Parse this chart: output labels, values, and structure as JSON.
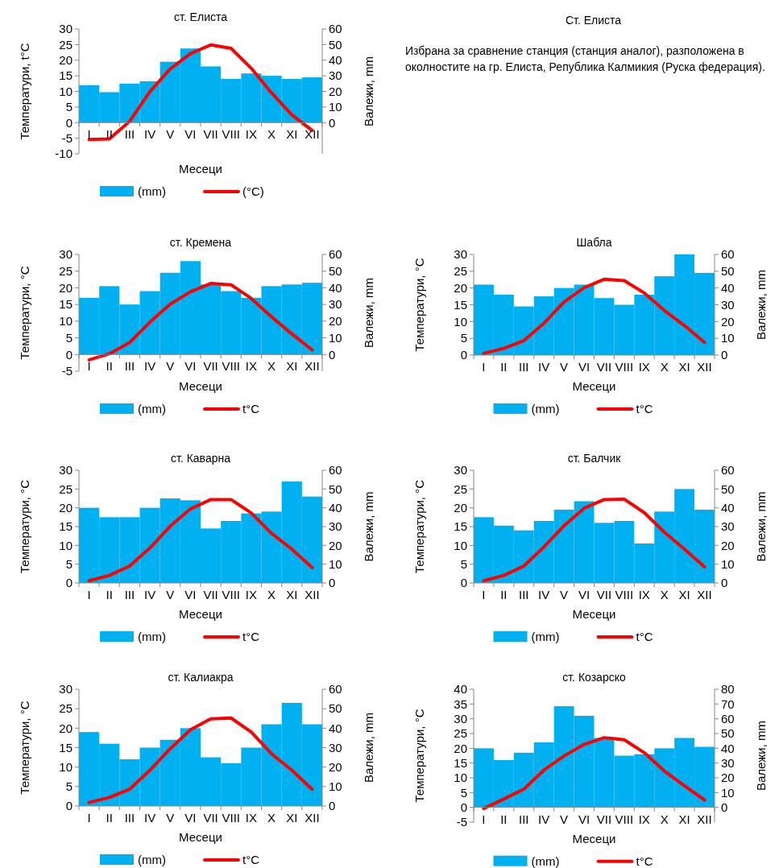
{
  "chart_data": [
    {
      "type": "bar",
      "title": "ст. Елиста",
      "xlabel": "Месеци",
      "ylabel": "Температури, t°C",
      "y2label": "Валежи, mm",
      "categories": [
        "I",
        "II",
        "III",
        "IV",
        "V",
        "VI",
        "VII",
        "VIII",
        "IX",
        "X",
        "XI",
        "XII"
      ],
      "ylim": [
        -10,
        30
      ],
      "yticks": [
        -10,
        -5,
        0,
        5,
        10,
        15,
        20,
        25,
        30
      ],
      "y2lim": [
        -20,
        60
      ],
      "y2ticks": [
        0,
        10,
        20,
        30,
        40,
        50,
        60
      ],
      "legend": "bottom",
      "series": [
        {
          "name": "(mm)",
          "type": "bar",
          "axis": "y2",
          "color": "#00b0f0",
          "values": [
            24,
            19.5,
            25,
            26.5,
            39,
            47.5,
            36,
            28,
            31.5,
            30,
            28,
            29
          ]
        },
        {
          "name": "(°C)",
          "type": "line",
          "color": "#ff0000",
          "values": [
            -5.4,
            -5.2,
            0.4,
            9.9,
            17.2,
            22.1,
            24.9,
            23.8,
            17.4,
            9.5,
            2.5,
            -2.5
          ]
        }
      ]
    },
    {
      "type": "other",
      "title": "Ст. Елиста",
      "annotations": [
        "Избрана за сравнение станция (станция аналог), разположена в околностите на гр. Елиста, Република Калмикия (Руска федерация)."
      ]
    },
    {
      "type": "bar",
      "title": "ст. Кремена",
      "xlabel": "Месеци",
      "ylabel": "Температури, °C",
      "y2label": "Валежи, mm",
      "categories": [
        "I",
        "II",
        "III",
        "IV",
        "V",
        "VI",
        "VII",
        "VIII",
        "IX",
        "X",
        "XI",
        "XII"
      ],
      "ylim": [
        -5,
        30
      ],
      "yticks": [
        -5,
        0,
        5,
        10,
        15,
        20,
        25,
        30
      ],
      "y2lim": [
        -10,
        60
      ],
      "y2ticks": [
        0,
        10,
        20,
        30,
        40,
        50,
        60
      ],
      "legend": "bottom",
      "series": [
        {
          "name": "(mm)",
          "type": "bar",
          "axis": "y2",
          "color": "#00b0f0",
          "values": [
            34,
            41,
            30,
            38,
            49,
            56,
            42,
            38,
            34,
            41,
            42,
            43
          ]
        },
        {
          "name": "t°C",
          "type": "line",
          "color": "#ff0000",
          "values": [
            -1.6,
            0.2,
            3.6,
            9.7,
            15.1,
            18.8,
            21.3,
            20.9,
            16.8,
            11.3,
            6.2,
            1.4
          ]
        }
      ]
    },
    {
      "type": "bar",
      "title": "Шабла",
      "xlabel": "Месеци",
      "ylabel": "Температури, °C",
      "y2label": "Валежи, mm",
      "categories": [
        "I",
        "II",
        "III",
        "IV",
        "V",
        "VI",
        "VII",
        "VIII",
        "IX",
        "X",
        "XI",
        "XII"
      ],
      "ylim": [
        0,
        30
      ],
      "yticks": [
        0,
        5,
        10,
        15,
        20,
        25,
        30
      ],
      "y2lim": [
        0,
        60
      ],
      "y2ticks": [
        0,
        10,
        20,
        30,
        40,
        50,
        60
      ],
      "legend": "bottom",
      "series": [
        {
          "name": "(mm)",
          "type": "bar",
          "axis": "y2",
          "color": "#00b0f0",
          "values": [
            42,
            36,
            29,
            35,
            40,
            42,
            34,
            30,
            36,
            47,
            60,
            49
          ]
        },
        {
          "name": "t°C",
          "type": "line",
          "color": "#ff0000",
          "values": [
            0.5,
            2,
            4.3,
            9.5,
            15.8,
            20.1,
            22.6,
            22.2,
            18.5,
            13.3,
            8.8,
            3.8
          ]
        }
      ]
    },
    {
      "type": "bar",
      "title": "ст. Каварна",
      "xlabel": "Месеци",
      "ylabel": "Температури, °C",
      "y2label": "Валежи, mm",
      "categories": [
        "I",
        "II",
        "III",
        "IV",
        "V",
        "VI",
        "VII",
        "VIII",
        "IX",
        "X",
        "XI",
        "XII"
      ],
      "ylim": [
        0,
        30
      ],
      "yticks": [
        0,
        5,
        10,
        15,
        20,
        25,
        30
      ],
      "y2lim": [
        0,
        60
      ],
      "y2ticks": [
        0,
        10,
        20,
        30,
        40,
        50,
        60
      ],
      "legend": "bottom",
      "series": [
        {
          "name": "(mm)",
          "type": "bar",
          "axis": "y2",
          "color": "#00b0f0",
          "values": [
            40,
            35,
            35,
            40,
            45,
            44,
            29,
            33,
            37,
            38,
            54,
            46
          ]
        },
        {
          "name": "t°C",
          "type": "line",
          "color": "#ff0000",
          "values": [
            0.6,
            2,
            4.5,
            9.3,
            15.1,
            19.7,
            22.2,
            22.2,
            18.6,
            13.2,
            9,
            4.1
          ]
        }
      ]
    },
    {
      "type": "bar",
      "title": "ст. Балчик",
      "xlabel": "Месеци",
      "ylabel": "Температури, °C",
      "y2label": "Валежи, mm",
      "categories": [
        "I",
        "II",
        "III",
        "IV",
        "V",
        "VI",
        "VII",
        "VIII",
        "IX",
        "X",
        "XI",
        "XII"
      ],
      "ylim": [
        0,
        30
      ],
      "yticks": [
        0,
        5,
        10,
        15,
        20,
        25,
        30
      ],
      "y2lim": [
        0,
        60
      ],
      "y2ticks": [
        0,
        10,
        20,
        30,
        40,
        50,
        60
      ],
      "legend": "bottom",
      "series": [
        {
          "name": "(mm)",
          "type": "bar",
          "axis": "y2",
          "color": "#00b0f0",
          "values": [
            35,
            30.5,
            28,
            33,
            39,
            43.5,
            32,
            33,
            21,
            38,
            50,
            39
          ]
        },
        {
          "name": "t°C",
          "type": "line",
          "color": "#ff0000",
          "values": [
            0.6,
            2,
            4.5,
            9.6,
            15.2,
            19.9,
            22.2,
            22.3,
            18.7,
            13.5,
            9,
            4.3
          ]
        }
      ]
    },
    {
      "type": "bar",
      "title": "ст. Калиакра",
      "xlabel": "Месеци",
      "ylabel": "Температури, °C",
      "y2label": "Валежи, mm",
      "categories": [
        "I",
        "II",
        "III",
        "IV",
        "V",
        "VI",
        "VII",
        "VIII",
        "IX",
        "X",
        "XI",
        "XII"
      ],
      "ylim": [
        0,
        30
      ],
      "yticks": [
        0,
        5,
        10,
        15,
        20,
        25,
        30
      ],
      "y2lim": [
        0,
        60
      ],
      "y2ticks": [
        0,
        10,
        20,
        30,
        40,
        50,
        60
      ],
      "legend": "bottom",
      "series": [
        {
          "name": "(mm)",
          "type": "bar",
          "axis": "y2",
          "color": "#00b0f0",
          "values": [
            38,
            32,
            24,
            30,
            34,
            40,
            25,
            22,
            30,
            42,
            53,
            42
          ]
        },
        {
          "name": "t°C",
          "type": "line",
          "color": "#ff0000",
          "values": [
            0.9,
            2.2,
            4.3,
            9.2,
            14.7,
            19.6,
            22.4,
            22.6,
            19,
            13.4,
            9.2,
            4.3
          ]
        }
      ]
    },
    {
      "type": "bar",
      "title": "ст. Козарско",
      "xlabel": "Месеци",
      "ylabel": "Температури, °C",
      "y2label": "Валежи, mm",
      "categories": [
        "I",
        "II",
        "III",
        "IV",
        "V",
        "VI",
        "VII",
        "VIII",
        "IX",
        "X",
        "XI",
        "XII"
      ],
      "ylim": [
        -5,
        40
      ],
      "yticks": [
        -5,
        0,
        5,
        10,
        15,
        20,
        25,
        30,
        35,
        40
      ],
      "y2lim": [
        -10,
        80
      ],
      "y2ticks": [
        0,
        10,
        20,
        30,
        40,
        50,
        60,
        70,
        80
      ],
      "legend": "bottom",
      "series": [
        {
          "name": "(mm)",
          "type": "bar",
          "axis": "y2",
          "color": "#00b0f0",
          "values": [
            40,
            32,
            37,
            44,
            68.5,
            62,
            47,
            35,
            36,
            40,
            47,
            41
          ]
        },
        {
          "name": "t°C",
          "type": "line",
          "color": "#ff0000",
          "values": [
            -0.4,
            2.8,
            6.2,
            12.6,
            17.4,
            21.3,
            23.6,
            22.9,
            18.5,
            12.3,
            7.3,
            2.5
          ]
        }
      ]
    }
  ]
}
